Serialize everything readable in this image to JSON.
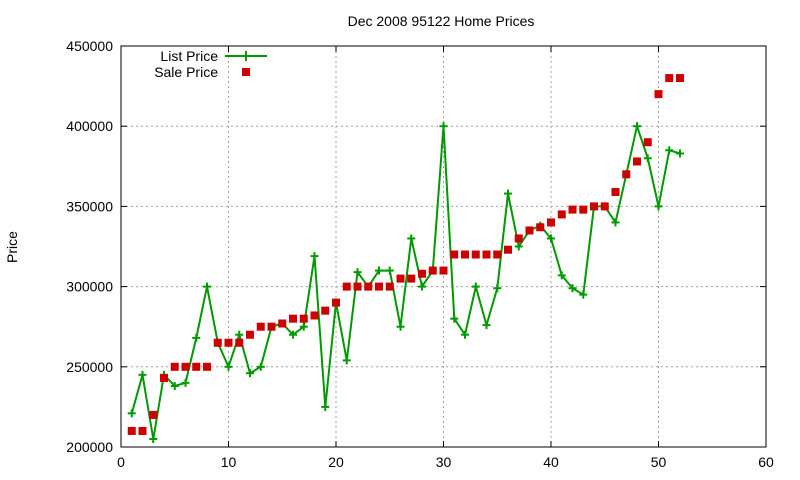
{
  "chart_data": {
    "type": "line",
    "title": "Dec 2008 95122 Home Prices",
    "xlabel": "",
    "ylabel": "Price",
    "xlim": [
      0,
      60
    ],
    "ylim": [
      200000,
      450000
    ],
    "xticks": [
      0,
      10,
      20,
      30,
      40,
      50,
      60
    ],
    "yticks": [
      200000,
      250000,
      300000,
      350000,
      400000,
      450000
    ],
    "grid": true,
    "legend_position": "top-left",
    "series": [
      {
        "name": "List Price",
        "style": "line-with-plus-markers",
        "color": "#009900",
        "x": [
          1,
          2,
          3,
          4,
          5,
          6,
          7,
          8,
          9,
          10,
          11,
          12,
          13,
          14,
          15,
          16,
          17,
          18,
          19,
          20,
          21,
          22,
          23,
          24,
          25,
          26,
          27,
          28,
          29,
          30,
          31,
          32,
          33,
          34,
          35,
          36,
          37,
          38,
          39,
          40,
          41,
          42,
          43,
          44,
          45,
          46,
          47,
          48,
          49,
          50,
          51,
          52
        ],
        "y": [
          221000,
          245000,
          205000,
          245000,
          238000,
          240000,
          268000,
          300000,
          265000,
          250000,
          270000,
          246000,
          250000,
          275000,
          277000,
          270000,
          275000,
          319000,
          225000,
          290000,
          254000,
          309000,
          300000,
          310000,
          310000,
          275000,
          330000,
          300000,
          310000,
          400000,
          280000,
          270000,
          300000,
          276000,
          299000,
          358000,
          325000,
          335000,
          338000,
          330000,
          307000,
          299000,
          295000,
          350000,
          350000,
          340000,
          370000,
          400000,
          380000,
          350000,
          385000,
          383000
        ]
      },
      {
        "name": "Sale Price",
        "style": "square-markers",
        "color": "#cc0000",
        "x": [
          1,
          2,
          3,
          4,
          5,
          6,
          7,
          8,
          9,
          10,
          11,
          12,
          13,
          14,
          15,
          16,
          17,
          18,
          19,
          20,
          21,
          22,
          23,
          24,
          25,
          26,
          27,
          28,
          29,
          30,
          31,
          32,
          33,
          34,
          35,
          36,
          37,
          38,
          39,
          40,
          41,
          42,
          43,
          44,
          45,
          46,
          47,
          48,
          49,
          50,
          51,
          52
        ],
        "y": [
          210000,
          210000,
          220000,
          243000,
          250000,
          250000,
          250000,
          250000,
          265000,
          265000,
          265000,
          270000,
          275000,
          275000,
          277000,
          280000,
          280000,
          282000,
          285000,
          290000,
          300000,
          300000,
          300000,
          300000,
          300000,
          305000,
          305000,
          308000,
          310000,
          310000,
          320000,
          320000,
          320000,
          320000,
          320000,
          323000,
          330000,
          335000,
          337000,
          340000,
          345000,
          348000,
          348000,
          350000,
          350000,
          359000,
          370000,
          378000,
          390000,
          420000,
          430000,
          430000
        ]
      }
    ]
  }
}
